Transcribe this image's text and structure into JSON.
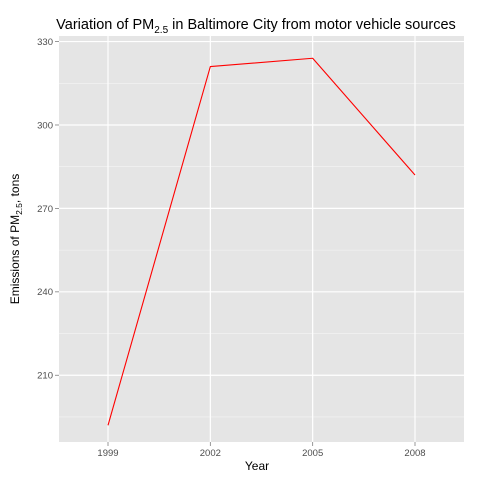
{
  "chart_data": {
    "type": "line",
    "title": {
      "prefix": "Variation of PM",
      "subscript": "2.5",
      "suffix": " in Baltimore City from motor vehicle sources"
    },
    "xlabel": "Year",
    "ylabel": {
      "prefix": "Emissions of PM",
      "subscript": "2.5",
      "suffix": ", tons"
    },
    "categories": [
      "1999",
      "2002",
      "2005",
      "2008"
    ],
    "series": [
      {
        "values": [
          192.0,
          321.0,
          324.0,
          282.0
        ],
        "color": "#ff0000"
      }
    ],
    "yticks": [
      210,
      240,
      270,
      300,
      330
    ],
    "ylim": [
      186,
      332
    ],
    "grid": true,
    "panel_color": "#e5e5e5",
    "grid_color": "#ffffff"
  }
}
